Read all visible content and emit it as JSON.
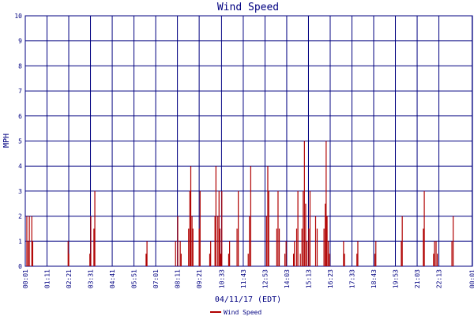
{
  "chart_data": {
    "type": "line",
    "title": "Wind Speed",
    "xlabel": "04/11/17 (EDT)",
    "ylabel": "MPH",
    "ylim": [
      0,
      10
    ],
    "yticks": [
      "0",
      "1",
      "2",
      "3",
      "4",
      "5",
      "6",
      "7",
      "8",
      "9",
      "10"
    ],
    "xlim": [
      0,
      1440
    ],
    "xticks": [
      {
        "label": "00:01",
        "t": 0
      },
      {
        "label": "01:11",
        "t": 70
      },
      {
        "label": "02:21",
        "t": 140
      },
      {
        "label": "03:31",
        "t": 210
      },
      {
        "label": "04:41",
        "t": 280
      },
      {
        "label": "05:51",
        "t": 350
      },
      {
        "label": "07:01",
        "t": 420
      },
      {
        "label": "08:11",
        "t": 490
      },
      {
        "label": "09:21",
        "t": 560
      },
      {
        "label": "10:33",
        "t": 632
      },
      {
        "label": "11:43",
        "t": 702
      },
      {
        "label": "12:53",
        "t": 772
      },
      {
        "label": "14:03",
        "t": 842
      },
      {
        "label": "15:13",
        "t": 912
      },
      {
        "label": "16:23",
        "t": 982
      },
      {
        "label": "17:33",
        "t": 1052
      },
      {
        "label": "18:43",
        "t": 1122
      },
      {
        "label": "19:53",
        "t": 1192
      },
      {
        "label": "21:03",
        "t": 1262
      },
      {
        "label": "22:13",
        "t": 1332
      },
      {
        "label": "00:01",
        "t": 1439
      }
    ],
    "grid": true,
    "legend_position": "bottom",
    "series": [
      {
        "name": "Wind Speed",
        "color": "#b00000",
        "gusts": [
          {
            "t": 5,
            "v": 2
          },
          {
            "t": 9,
            "v": 1
          },
          {
            "t": 13,
            "v": 2
          },
          {
            "t": 21,
            "v": 2
          },
          {
            "t": 24,
            "v": 1
          },
          {
            "t": 138,
            "v": 1
          },
          {
            "t": 140,
            "v": 0.5
          },
          {
            "t": 208,
            "v": 0.5
          },
          {
            "t": 211,
            "v": 2
          },
          {
            "t": 221,
            "v": 1.5
          },
          {
            "t": 224,
            "v": 3
          },
          {
            "t": 389,
            "v": 0.5
          },
          {
            "t": 392,
            "v": 1
          },
          {
            "t": 484,
            "v": 1
          },
          {
            "t": 491,
            "v": 2
          },
          {
            "t": 499,
            "v": 1
          },
          {
            "t": 502,
            "v": 0.5
          },
          {
            "t": 526,
            "v": 1.5
          },
          {
            "t": 530,
            "v": 3
          },
          {
            "t": 533,
            "v": 4
          },
          {
            "t": 537,
            "v": 2
          },
          {
            "t": 540,
            "v": 1.5
          },
          {
            "t": 560,
            "v": 1.5
          },
          {
            "t": 563,
            "v": 3
          },
          {
            "t": 594,
            "v": 0.5
          },
          {
            "t": 597,
            "v": 1
          },
          {
            "t": 611,
            "v": 2
          },
          {
            "t": 614,
            "v": 4
          },
          {
            "t": 620,
            "v": 2
          },
          {
            "t": 624,
            "v": 3
          },
          {
            "t": 627,
            "v": 1.5
          },
          {
            "t": 630,
            "v": 0.5
          },
          {
            "t": 633,
            "v": 3
          },
          {
            "t": 655,
            "v": 0.5
          },
          {
            "t": 658,
            "v": 1
          },
          {
            "t": 682,
            "v": 1.5
          },
          {
            "t": 686,
            "v": 3
          },
          {
            "t": 718,
            "v": 0.5
          },
          {
            "t": 722,
            "v": 2
          },
          {
            "t": 726,
            "v": 4
          },
          {
            "t": 777,
            "v": 2
          },
          {
            "t": 781,
            "v": 4
          },
          {
            "t": 784,
            "v": 3
          },
          {
            "t": 810,
            "v": 1.5
          },
          {
            "t": 814,
            "v": 3
          },
          {
            "t": 818,
            "v": 1.5
          },
          {
            "t": 836,
            "v": 0.5
          },
          {
            "t": 840,
            "v": 1
          },
          {
            "t": 864,
            "v": 0.5
          },
          {
            "t": 867,
            "v": 1
          },
          {
            "t": 874,
            "v": 1.5
          },
          {
            "t": 878,
            "v": 3
          },
          {
            "t": 886,
            "v": 0.5
          },
          {
            "t": 891,
            "v": 1.5
          },
          {
            "t": 895,
            "v": 3
          },
          {
            "t": 899,
            "v": 5
          },
          {
            "t": 903,
            "v": 2.5
          },
          {
            "t": 907,
            "v": 1
          },
          {
            "t": 913,
            "v": 1.5
          },
          {
            "t": 917,
            "v": 3
          },
          {
            "t": 935,
            "v": 2
          },
          {
            "t": 940,
            "v": 1.5
          },
          {
            "t": 962,
            "v": 1.5
          },
          {
            "t": 966,
            "v": 2.5
          },
          {
            "t": 969,
            "v": 5
          },
          {
            "t": 972,
            "v": 2
          },
          {
            "t": 976,
            "v": 1
          },
          {
            "t": 980,
            "v": 0.5
          },
          {
            "t": 1025,
            "v": 1
          },
          {
            "t": 1028,
            "v": 0.5
          },
          {
            "t": 1068,
            "v": 0.5
          },
          {
            "t": 1071,
            "v": 1
          },
          {
            "t": 1126,
            "v": 0.5
          },
          {
            "t": 1129,
            "v": 1
          },
          {
            "t": 1211,
            "v": 1
          },
          {
            "t": 1214,
            "v": 2
          },
          {
            "t": 1282,
            "v": 1.5
          },
          {
            "t": 1285,
            "v": 3
          },
          {
            "t": 1315,
            "v": 0.5
          },
          {
            "t": 1318,
            "v": 1
          },
          {
            "t": 1323,
            "v": 1
          },
          {
            "t": 1327,
            "v": 0.5
          },
          {
            "t": 1374,
            "v": 1
          },
          {
            "t": 1378,
            "v": 2
          }
        ]
      }
    ]
  }
}
